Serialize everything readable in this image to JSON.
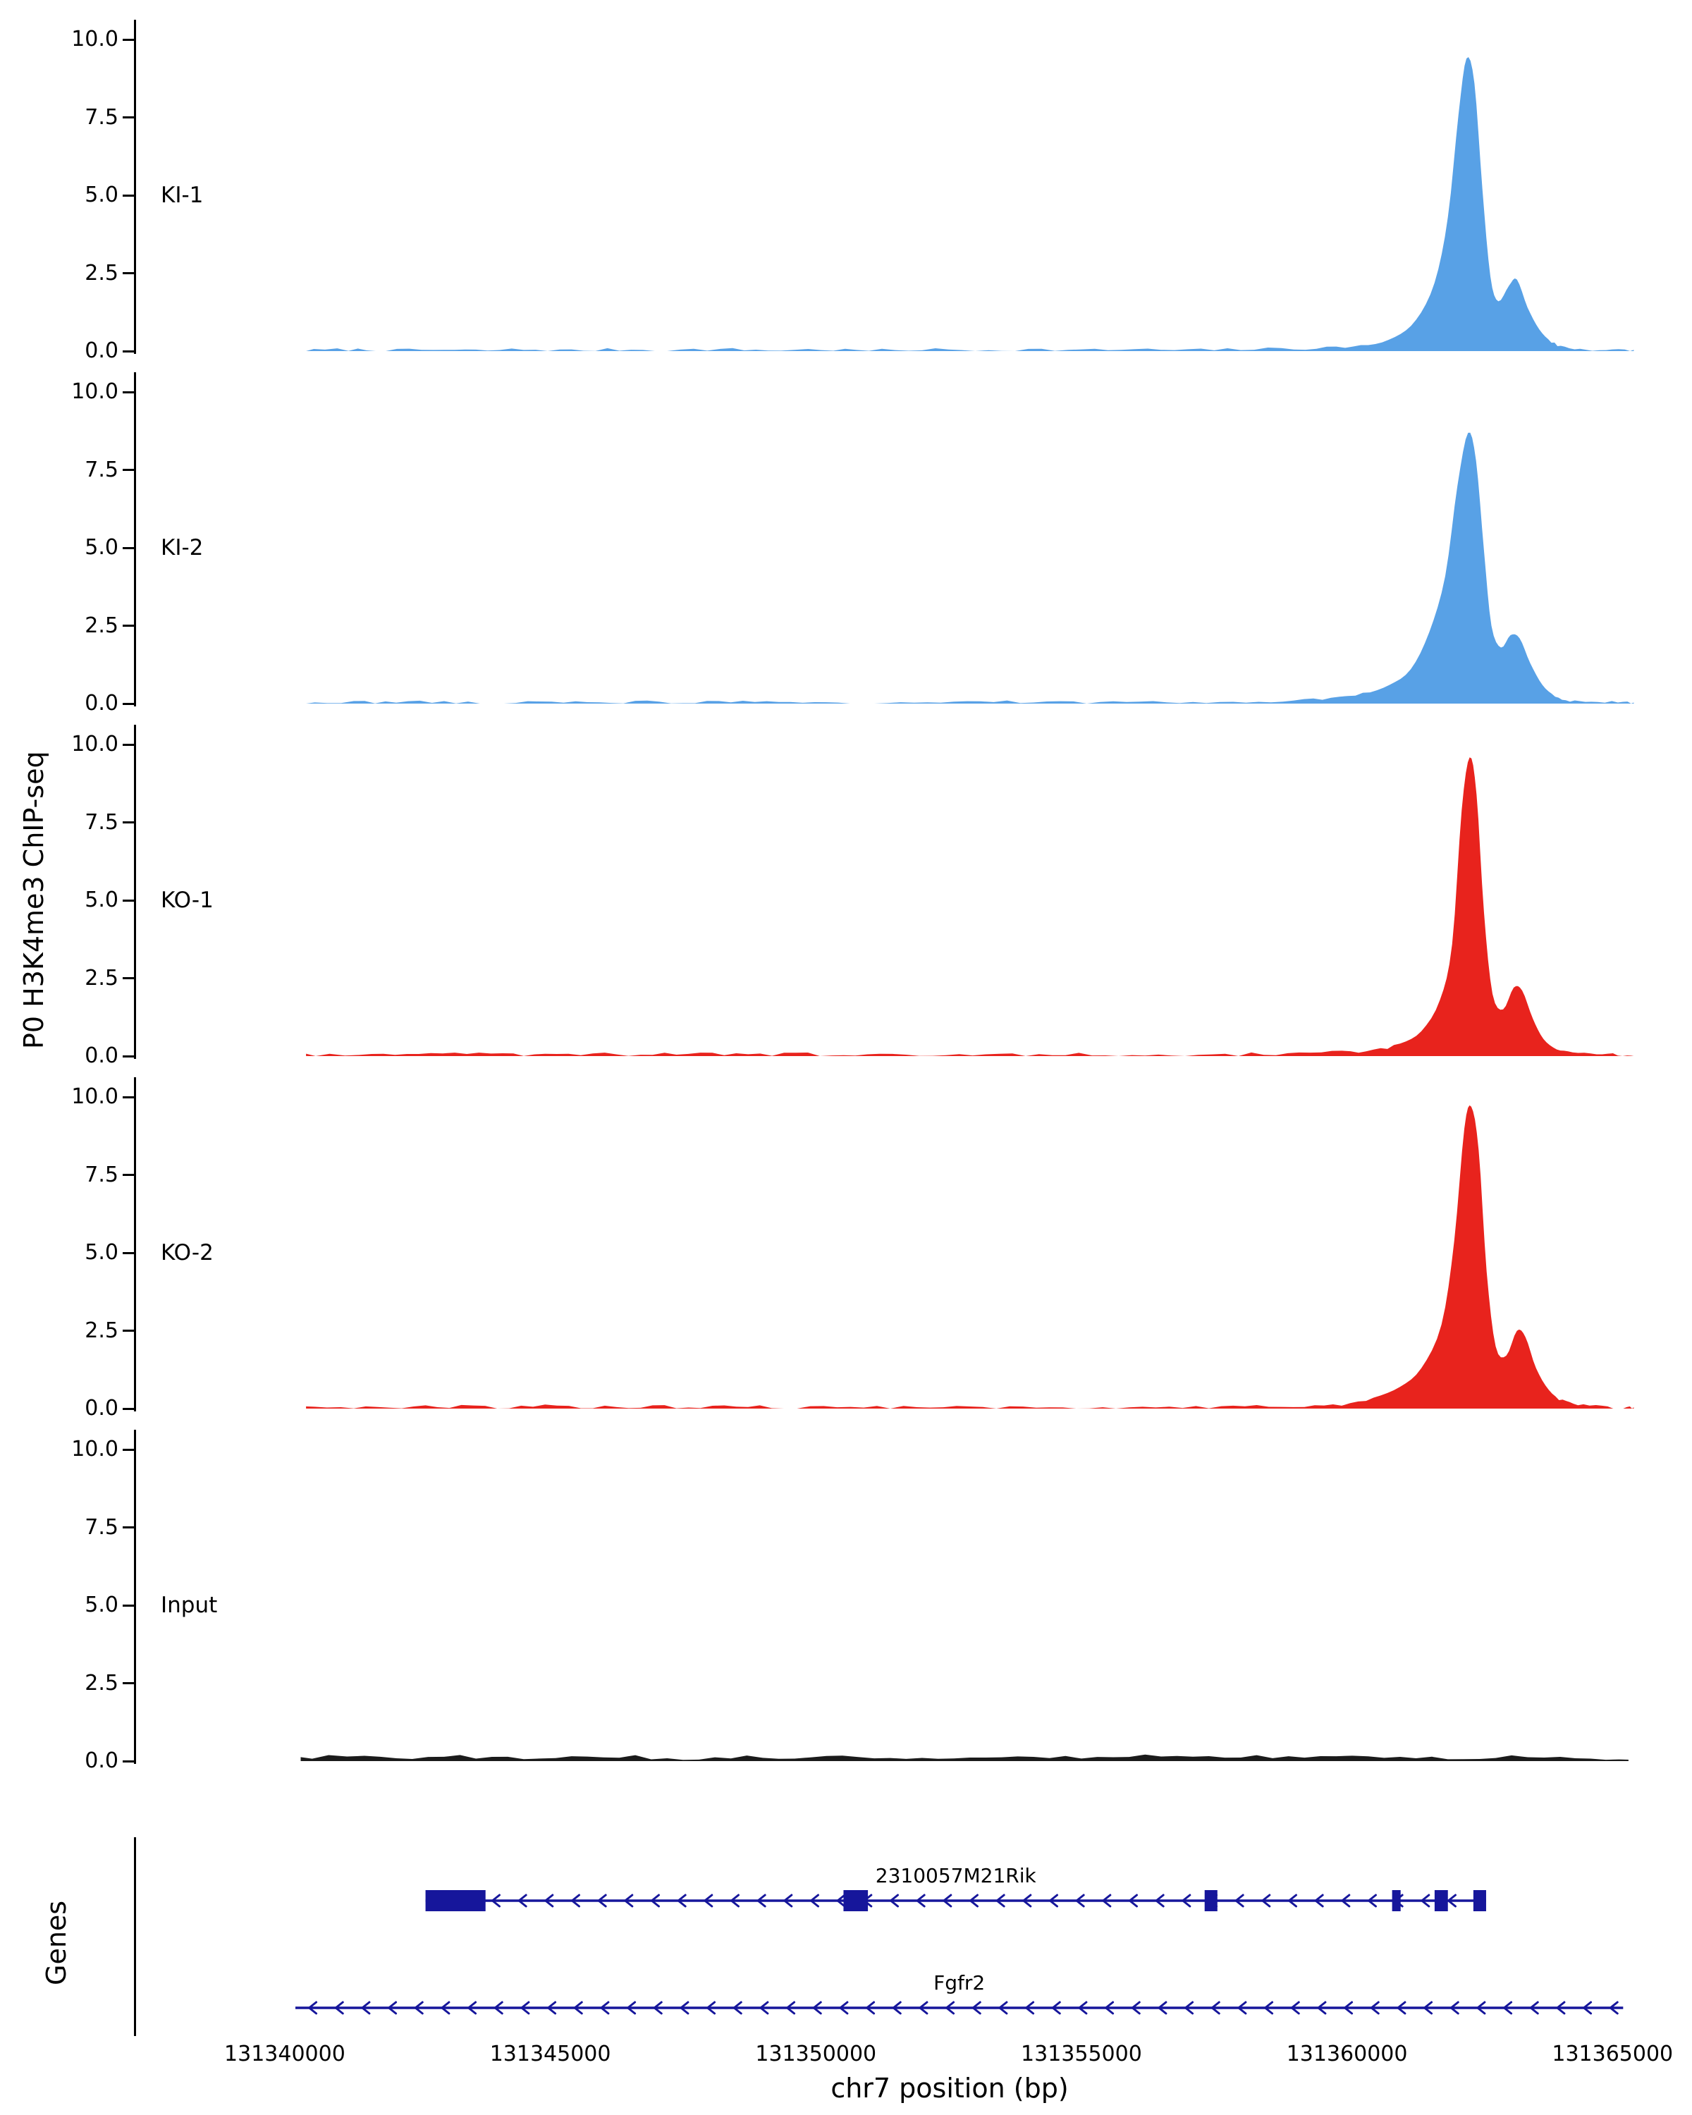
{
  "figure": {
    "ylabel": "P0 H3K4me3 ChIP-seq",
    "xlabel": "chr7 position (bp)",
    "genes_panel_label": "Genes"
  },
  "chart_data": {
    "type": "area",
    "title": "",
    "xlabel": "chr7 position (bp)",
    "ylabel": "P0 H3K4me3 ChIP-seq",
    "x_ticks": [
      131340000,
      131345000,
      131350000,
      131355000,
      131360000,
      131365000
    ],
    "xlim": [
      131337200,
      131365700
    ],
    "y_ticks": [
      0.0,
      2.5,
      5.0,
      7.5,
      10.0
    ],
    "ylim": [
      0,
      10.6
    ],
    "legend": "off",
    "grid": "off",
    "tracks": [
      {
        "name": "KI-1",
        "color": "#58a1e6",
        "noise": 0.05,
        "profile": [
          [
            131340400,
            0.02
          ],
          [
            131341200,
            0.05
          ],
          [
            131341900,
            0.02
          ],
          [
            131342800,
            0.04
          ],
          [
            131343600,
            0.02
          ],
          [
            131344500,
            0.05
          ],
          [
            131345400,
            0.02
          ],
          [
            131346300,
            0.05
          ],
          [
            131347200,
            0.03
          ],
          [
            131348200,
            0.06
          ],
          [
            131349100,
            0.03
          ],
          [
            131350100,
            0.05
          ],
          [
            131351000,
            0.02
          ],
          [
            131352000,
            0.05
          ],
          [
            131353000,
            0.03
          ],
          [
            131354000,
            0.05
          ],
          [
            131355000,
            0.03
          ],
          [
            131356000,
            0.05
          ],
          [
            131357000,
            0.03
          ],
          [
            131358000,
            0.06
          ],
          [
            131359000,
            0.08
          ],
          [
            131359800,
            0.12
          ],
          [
            131360400,
            0.2
          ],
          [
            131360900,
            0.45
          ],
          [
            131361300,
            1.0
          ],
          [
            131361650,
            2.2
          ],
          [
            131361900,
            4.3
          ],
          [
            131362100,
            7.6
          ],
          [
            131362250,
            9.4
          ],
          [
            131362400,
            8.6
          ],
          [
            131362550,
            5.2
          ],
          [
            131362700,
            2.4
          ],
          [
            131362850,
            1.6
          ],
          [
            131363050,
            2.1
          ],
          [
            131363200,
            2.3
          ],
          [
            131363400,
            1.4
          ],
          [
            131363620,
            0.7
          ],
          [
            131363850,
            0.3
          ],
          [
            131364100,
            0.12
          ],
          [
            131364500,
            0.06
          ],
          [
            131365000,
            0.03
          ],
          [
            131365400,
            0.02
          ]
        ]
      },
      {
        "name": "KI-2",
        "color": "#58a1e6",
        "noise": 0.05,
        "profile": [
          [
            131340400,
            0.03
          ],
          [
            131341300,
            0.06
          ],
          [
            131342100,
            0.03
          ],
          [
            131343000,
            0.06
          ],
          [
            131343900,
            0.03
          ],
          [
            131344800,
            0.06
          ],
          [
            131345700,
            0.03
          ],
          [
            131346600,
            0.06
          ],
          [
            131347500,
            0.04
          ],
          [
            131348400,
            0.07
          ],
          [
            131349300,
            0.04
          ],
          [
            131350200,
            0.06
          ],
          [
            131351100,
            0.03
          ],
          [
            131352100,
            0.06
          ],
          [
            131353100,
            0.04
          ],
          [
            131354100,
            0.06
          ],
          [
            131355100,
            0.04
          ],
          [
            131356100,
            0.06
          ],
          [
            131357100,
            0.04
          ],
          [
            131358100,
            0.07
          ],
          [
            131359000,
            0.1
          ],
          [
            131359700,
            0.15
          ],
          [
            131360300,
            0.3
          ],
          [
            131360800,
            0.6
          ],
          [
            131361200,
            1.1
          ],
          [
            131361550,
            2.3
          ],
          [
            131361850,
            4.1
          ],
          [
            131362080,
            7.0
          ],
          [
            131362280,
            8.7
          ],
          [
            131362430,
            7.8
          ],
          [
            131362580,
            4.9
          ],
          [
            131362720,
            2.5
          ],
          [
            131362900,
            1.8
          ],
          [
            131363080,
            2.2
          ],
          [
            131363250,
            2.1
          ],
          [
            131363450,
            1.3
          ],
          [
            131363680,
            0.6
          ],
          [
            131363920,
            0.25
          ],
          [
            131364200,
            0.1
          ],
          [
            131364600,
            0.05
          ],
          [
            131365100,
            0.03
          ],
          [
            131365400,
            0.02
          ]
        ]
      },
      {
        "name": "KO-1",
        "color": "#e8231d",
        "noise": 0.06,
        "profile": [
          [
            131340400,
            0.02
          ],
          [
            131341400,
            0.05
          ],
          [
            131342300,
            0.02
          ],
          [
            131343200,
            0.06
          ],
          [
            131344100,
            0.08
          ],
          [
            131344900,
            0.04
          ],
          [
            131345800,
            0.09
          ],
          [
            131346700,
            0.05
          ],
          [
            131347600,
            0.09
          ],
          [
            131348500,
            0.05
          ],
          [
            131349400,
            0.07
          ],
          [
            131350300,
            0.04
          ],
          [
            131351200,
            0.06
          ],
          [
            131352200,
            0.03
          ],
          [
            131353200,
            0.06
          ],
          [
            131354200,
            0.03
          ],
          [
            131355200,
            0.05
          ],
          [
            131356200,
            0.03
          ],
          [
            131357200,
            0.05
          ],
          [
            131358200,
            0.06
          ],
          [
            131359100,
            0.08
          ],
          [
            131359900,
            0.12
          ],
          [
            131360500,
            0.2
          ],
          [
            131361000,
            0.4
          ],
          [
            131361400,
            0.8
          ],
          [
            131361750,
            1.8
          ],
          [
            131361980,
            3.6
          ],
          [
            131362160,
            7.9
          ],
          [
            131362310,
            9.6
          ],
          [
            131362440,
            8.4
          ],
          [
            131362580,
            4.6
          ],
          [
            131362740,
            2.0
          ],
          [
            131362940,
            1.5
          ],
          [
            131363140,
            2.2
          ],
          [
            131363300,
            2.1
          ],
          [
            131363500,
            1.2
          ],
          [
            131363700,
            0.55
          ],
          [
            131363950,
            0.22
          ],
          [
            131364250,
            0.1
          ],
          [
            131364700,
            0.05
          ],
          [
            131365100,
            0.03
          ],
          [
            131365400,
            0.02
          ]
        ]
      },
      {
        "name": "KO-2",
        "color": "#e8231d",
        "noise": 0.06,
        "profile": [
          [
            131340400,
            0.03
          ],
          [
            131341300,
            0.06
          ],
          [
            131342200,
            0.03
          ],
          [
            131343100,
            0.06
          ],
          [
            131344000,
            0.04
          ],
          [
            131344900,
            0.07
          ],
          [
            131345800,
            0.04
          ],
          [
            131346700,
            0.07
          ],
          [
            131347600,
            0.04
          ],
          [
            131348500,
            0.07
          ],
          [
            131349400,
            0.04
          ],
          [
            131350400,
            0.06
          ],
          [
            131351400,
            0.03
          ],
          [
            131352400,
            0.06
          ],
          [
            131353400,
            0.04
          ],
          [
            131354400,
            0.06
          ],
          [
            131355400,
            0.04
          ],
          [
            131356400,
            0.06
          ],
          [
            131357400,
            0.04
          ],
          [
            131358300,
            0.07
          ],
          [
            131359200,
            0.1
          ],
          [
            131359900,
            0.15
          ],
          [
            131360500,
            0.35
          ],
          [
            131361000,
            0.7
          ],
          [
            131361400,
            1.3
          ],
          [
            131361780,
            2.7
          ],
          [
            131362020,
            5.4
          ],
          [
            131362210,
            9.0
          ],
          [
            131362340,
            9.7
          ],
          [
            131362480,
            8.3
          ],
          [
            131362630,
            4.4
          ],
          [
            131362800,
            2.0
          ],
          [
            131363000,
            1.7
          ],
          [
            131363200,
            2.5
          ],
          [
            131363360,
            2.3
          ],
          [
            131363560,
            1.3
          ],
          [
            131363800,
            0.6
          ],
          [
            131364060,
            0.25
          ],
          [
            131364350,
            0.1
          ],
          [
            131364800,
            0.05
          ],
          [
            131365200,
            0.03
          ],
          [
            131365400,
            0.02
          ]
        ]
      },
      {
        "name": "Input",
        "color": "#1b1b1b",
        "noise": 0.07,
        "profile": [
          [
            131340300,
            0.1
          ],
          [
            131341500,
            0.14
          ],
          [
            131342700,
            0.1
          ],
          [
            131343900,
            0.15
          ],
          [
            131345100,
            0.11
          ],
          [
            131346300,
            0.15
          ],
          [
            131347500,
            0.1
          ],
          [
            131348700,
            0.14
          ],
          [
            131349900,
            0.11
          ],
          [
            131351100,
            0.15
          ],
          [
            131352300,
            0.1
          ],
          [
            131353500,
            0.14
          ],
          [
            131354700,
            0.11
          ],
          [
            131355900,
            0.15
          ],
          [
            131357100,
            0.1
          ],
          [
            131358300,
            0.14
          ],
          [
            131359500,
            0.12
          ],
          [
            131360700,
            0.15
          ],
          [
            131361900,
            0.12
          ],
          [
            131363100,
            0.15
          ],
          [
            131364300,
            0.11
          ],
          [
            131365300,
            0.1
          ]
        ]
      }
    ],
    "genes": [
      {
        "name": "2310057M21Rik",
        "start": 131342650,
        "end": 131362620,
        "strand": "-",
        "color": "#16169b",
        "exons": [
          [
            131342650,
            131343780
          ],
          [
            131350520,
            131350980
          ],
          [
            131357320,
            131357560
          ],
          [
            131360850,
            131361010
          ],
          [
            131361650,
            131361900
          ],
          [
            131362380,
            131362620
          ]
        ]
      },
      {
        "name": "Fgfr2",
        "start": 131340200,
        "end": 131365200,
        "strand": "-",
        "color": "#16169b",
        "exons": []
      }
    ]
  }
}
